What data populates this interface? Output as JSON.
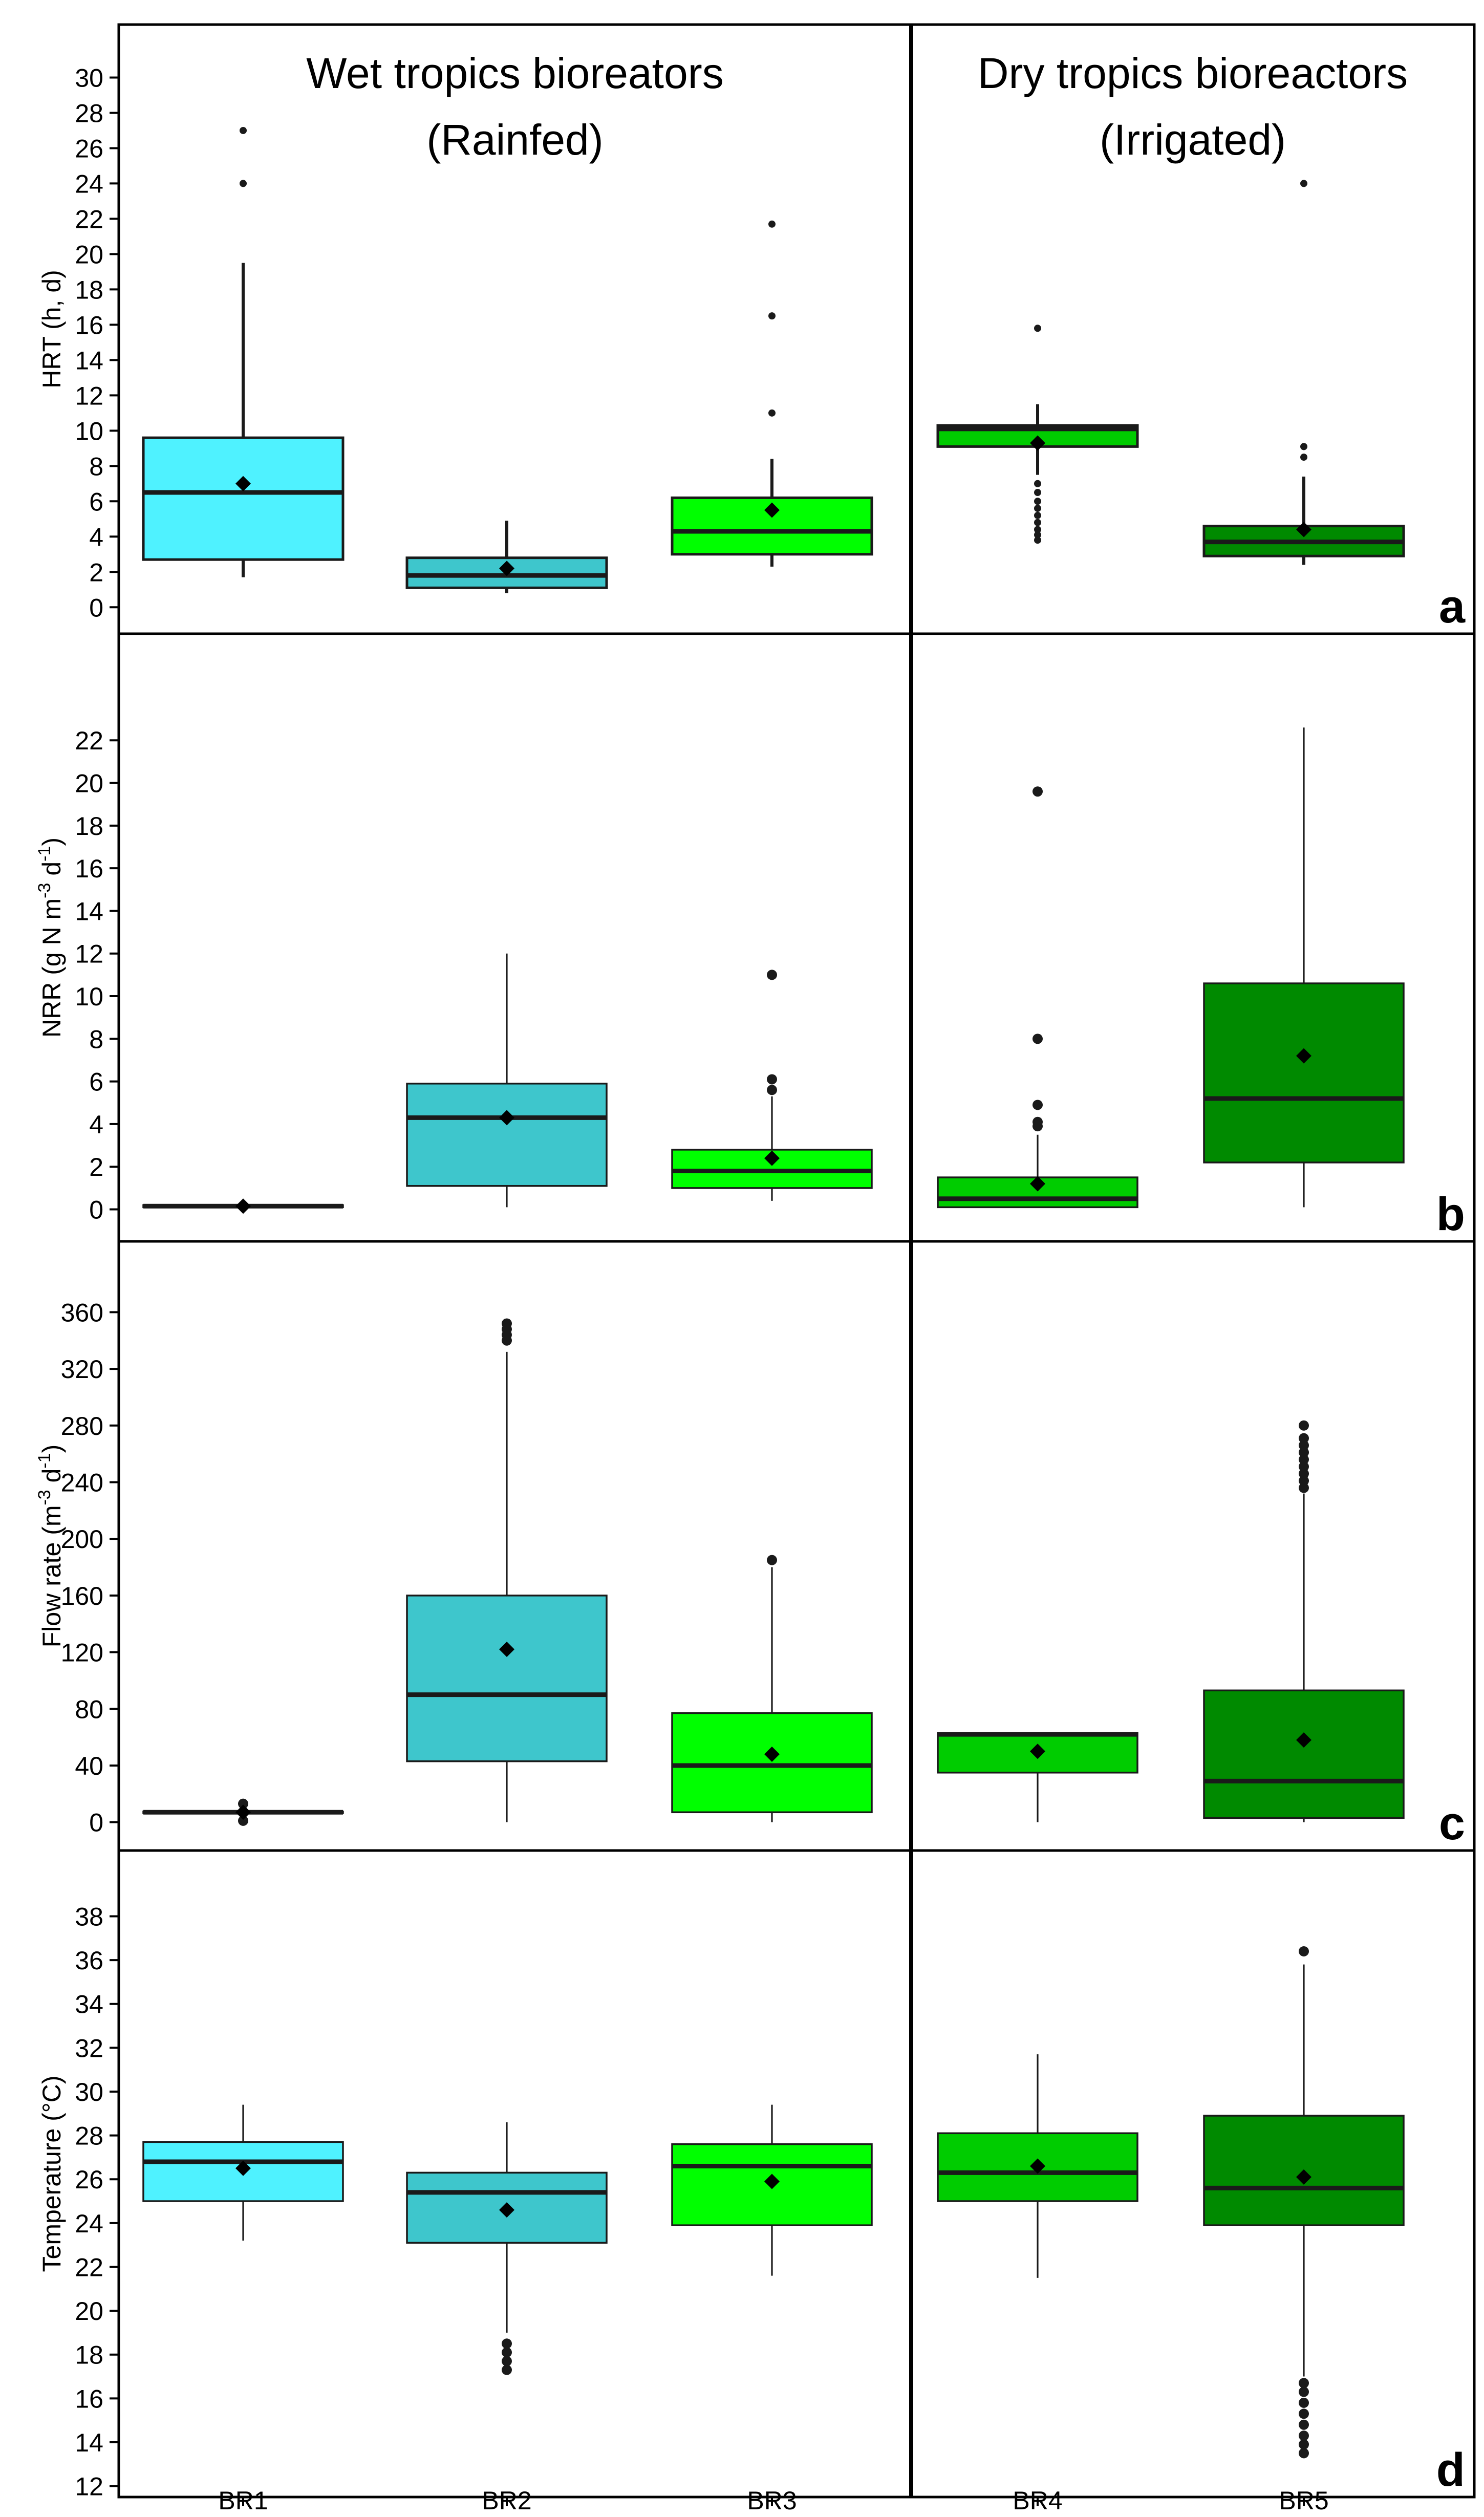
{
  "chart_data": {
    "type": "boxplot",
    "group_titles": [
      {
        "line1": "Wet tropics bioreators",
        "line2": "(Rainfed)"
      },
      {
        "line1": "Dry tropics bioreactors",
        "line2": "(Irrigated)"
      }
    ],
    "categories": [
      "BR1",
      "BR2",
      "BR3",
      "BR4",
      "BR5"
    ],
    "fills": [
      "#4ff2ff",
      "#3ec6cc",
      "#00ff00",
      "#00cc00",
      "#008a00"
    ],
    "panels": [
      {
        "letter": "a",
        "ylabel_main": "HRT (h, d)",
        "ylabel_sup": "",
        "ylabel_mid": "",
        "ylabel_sup2": "",
        "ylabel_tail": "",
        "ylim": [
          -1.5,
          33
        ],
        "ticks": [
          0,
          2,
          4,
          6,
          8,
          10,
          12,
          14,
          16,
          18,
          20,
          22,
          24,
          26,
          28,
          30
        ],
        "boxes": [
          {
            "lw": 1.7,
            "q1": 2.7,
            "median": 6.5,
            "q3": 9.6,
            "uw": 19.5,
            "mean": 7.0,
            "outliers": [
              24.0,
              27.0
            ]
          },
          {
            "lw": 0.8,
            "q1": 1.1,
            "median": 1.8,
            "q3": 2.8,
            "uw": 4.9,
            "mean": 2.2,
            "outliers": []
          },
          {
            "lw": 2.3,
            "q1": 3.0,
            "median": 4.3,
            "q3": 6.2,
            "uw": 8.4,
            "mean": 5.5,
            "outliers": [
              11.0,
              16.5,
              21.7
            ]
          },
          {
            "lw": 7.5,
            "q1": 9.1,
            "median": 10.1,
            "q3": 10.3,
            "uw": 11.5,
            "mean": 9.3,
            "outliers": [
              3.8,
              4.1,
              4.4,
              4.8,
              5.2,
              5.6,
              6.0,
              6.5,
              7.0,
              15.8
            ]
          },
          {
            "lw": 2.4,
            "q1": 2.9,
            "median": 3.7,
            "q3": 4.6,
            "uw": 7.4,
            "mean": 4.4,
            "outliers": [
              8.5,
              9.1,
              24.0
            ]
          }
        ]
      },
      {
        "letter": "b",
        "ylabel_main": "NRR (g N m",
        "ylabel_sup": "-3",
        "ylabel_mid": " d",
        "ylabel_sup2": "-1",
        "ylabel_tail": ")",
        "ylim": [
          -1.5,
          27
        ],
        "ticks": [
          0,
          2,
          4,
          6,
          8,
          10,
          12,
          14,
          16,
          18,
          20,
          22
        ],
        "boxes": [
          {
            "lw": 0.1,
            "q1": 0.1,
            "median": 0.15,
            "q3": 0.2,
            "uw": 0.2,
            "mean": 0.15,
            "outliers": []
          },
          {
            "lw": 0.1,
            "q1": 1.1,
            "median": 4.3,
            "q3": 5.9,
            "uw": 12.0,
            "mean": 4.3,
            "outliers": []
          },
          {
            "lw": 0.4,
            "q1": 1.0,
            "median": 1.8,
            "q3": 2.8,
            "uw": 5.3,
            "mean": 2.4,
            "outliers": [
              5.6,
              6.1,
              11.0
            ]
          },
          {
            "lw": 0.1,
            "q1": 0.1,
            "median": 0.5,
            "q3": 1.5,
            "uw": 3.5,
            "mean": 1.2,
            "outliers": [
              3.9,
              4.1,
              4.9,
              8.0,
              19.6
            ]
          },
          {
            "lw": 0.1,
            "q1": 2.2,
            "median": 5.2,
            "q3": 10.6,
            "uw": 22.6,
            "mean": 7.2,
            "outliers": []
          }
        ]
      },
      {
        "letter": "c",
        "ylabel_main": "Flow rate (m",
        "ylabel_sup": "-3",
        "ylabel_mid": " d",
        "ylabel_sup2": "-1",
        "ylabel_tail": ")",
        "ylim": [
          -20,
          410
        ],
        "ticks": [
          0,
          40,
          80,
          120,
          160,
          200,
          240,
          280,
          320,
          360
        ],
        "boxes": [
          {
            "lw": 7.0,
            "q1": 6.5,
            "median": 7.0,
            "q3": 7.5,
            "uw": 7.5,
            "mean": 7.0,
            "outliers": [
              1.0,
              13.0
            ]
          },
          {
            "lw": 0.0,
            "q1": 43.0,
            "median": 90.0,
            "q3": 160.0,
            "uw": 332.0,
            "mean": 122.0,
            "outliers": [
              340,
              344,
              348,
              352
            ]
          },
          {
            "lw": 0.0,
            "q1": 7.0,
            "median": 40.0,
            "q3": 77.0,
            "uw": 180.0,
            "mean": 48.0,
            "outliers": [
              185.0
            ]
          },
          {
            "lw": 0.0,
            "q1": 35.0,
            "median": 62.0,
            "q3": 63.0,
            "uw": 63.0,
            "mean": 50.0,
            "outliers": []
          },
          {
            "lw": 0.0,
            "q1": 3.0,
            "median": 29.0,
            "q3": 93.0,
            "uw": 232.0,
            "mean": 58.0,
            "outliers": [
              236,
              241,
              246,
              251,
              256,
              261,
              266,
              271,
              280
            ]
          }
        ]
      },
      {
        "letter": "d",
        "ylabel_main": "Temperature (°C)",
        "ylabel_sup": "",
        "ylabel_mid": "",
        "ylabel_sup2": "",
        "ylabel_tail": "",
        "ylim": [
          11.5,
          41
        ],
        "ticks": [
          12,
          14,
          16,
          18,
          20,
          22,
          24,
          26,
          28,
          30,
          32,
          34,
          36,
          38
        ],
        "boxes": [
          {
            "lw": 23.2,
            "q1": 25.0,
            "median": 26.8,
            "q3": 27.7,
            "uw": 29.4,
            "mean": 26.5,
            "outliers": []
          },
          {
            "lw": 19.0,
            "q1": 23.1,
            "median": 25.4,
            "q3": 26.3,
            "uw": 28.6,
            "mean": 24.6,
            "outliers": [
              17.3,
              17.7,
              18.1,
              18.5
            ]
          },
          {
            "lw": 21.6,
            "q1": 23.9,
            "median": 26.6,
            "q3": 27.6,
            "uw": 29.4,
            "mean": 25.9,
            "outliers": []
          },
          {
            "lw": 21.5,
            "q1": 25.0,
            "median": 26.3,
            "q3": 28.1,
            "uw": 31.7,
            "mean": 26.6,
            "outliers": []
          },
          {
            "lw": 17.0,
            "q1": 23.9,
            "median": 25.6,
            "q3": 28.9,
            "uw": 35.8,
            "mean": 26.1,
            "outliers": [
              13.5,
              13.9,
              14.3,
              14.8,
              15.3,
              15.8,
              16.3,
              16.7,
              36.4
            ]
          }
        ]
      }
    ]
  }
}
